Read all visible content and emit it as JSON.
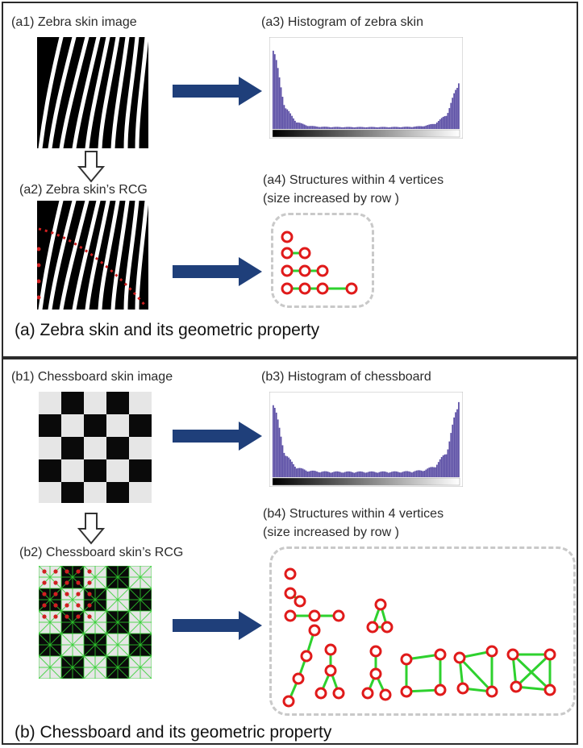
{
  "panel_a": {
    "label_a1": "(a1) Zebra skin image",
    "label_a2": "(a2) Zebra skin’s RCG",
    "label_a3": "(a3) Histogram of zebra skin",
    "label_a4_line1": "(a4) Structures within 4 vertices",
    "label_a4_line2": "(size increased by row )",
    "caption": "(a) Zebra skin and its geometric property"
  },
  "panel_b": {
    "label_b1": "(b1) Chessboard skin image",
    "label_b2": "(b2) Chessboard skin’s RCG",
    "label_b3": "(b3) Histogram of chessboard",
    "label_b4_line1": "(b4) Structures within 4 vertices",
    "label_b4_line2": "(size increased by row )",
    "caption": "(b) Chessboard and its geometric property"
  },
  "colors": {
    "arrow_fill": "#1f3f7a",
    "histogram_bar": "#5b4ea5",
    "vertex_stroke": "#e01a1a",
    "edge_stroke": "#2ed12e",
    "dashed_box": "#c9c9c9"
  }
}
